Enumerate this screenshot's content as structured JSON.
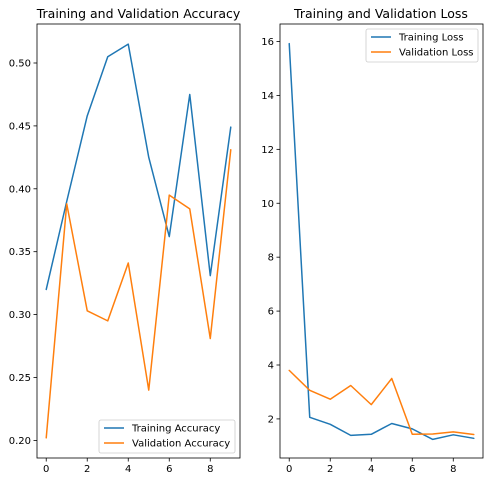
{
  "chart_data": [
    {
      "type": "line",
      "title": "Training and Validation Accuracy",
      "xlabel": "",
      "ylabel": "",
      "xlim": [
        -0.45,
        9.45
      ],
      "ylim": [
        0.186,
        0.531
      ],
      "xticks": [
        0,
        2,
        4,
        6,
        8
      ],
      "yticks": [
        0.2,
        0.25,
        0.3,
        0.35,
        0.4,
        0.45,
        0.5
      ],
      "ytick_labels": [
        "0.20",
        "0.25",
        "0.30",
        "0.35",
        "0.40",
        "0.45",
        "0.50"
      ],
      "grid": false,
      "legend_position": "lower-right",
      "x": [
        0,
        1,
        2,
        3,
        4,
        5,
        6,
        7,
        8,
        9
      ],
      "series": [
        {
          "name": "Training Accuracy",
          "color": "#1f77b4",
          "values": [
            0.32,
            0.39,
            0.458,
            0.505,
            0.515,
            0.425,
            0.362,
            0.475,
            0.331,
            0.449
          ]
        },
        {
          "name": "Validation Accuracy",
          "color": "#ff7f0e",
          "values": [
            0.202,
            0.388,
            0.303,
            0.295,
            0.341,
            0.24,
            0.395,
            0.384,
            0.281,
            0.431
          ]
        }
      ]
    },
    {
      "type": "line",
      "title": "Training and Validation Loss",
      "xlabel": "",
      "ylabel": "",
      "xlim": [
        -0.45,
        9.45
      ],
      "ylim": [
        0.55,
        16.65
      ],
      "xticks": [
        0,
        2,
        4,
        6,
        8
      ],
      "yticks": [
        2,
        4,
        6,
        8,
        10,
        12,
        14,
        16
      ],
      "ytick_labels": [
        "2",
        "4",
        "6",
        "8",
        "10",
        "12",
        "14",
        "16"
      ],
      "grid": false,
      "legend_position": "upper-right",
      "x": [
        0,
        1,
        2,
        3,
        4,
        5,
        6,
        7,
        8,
        9
      ],
      "series": [
        {
          "name": "Training Loss",
          "color": "#1f77b4",
          "values": [
            15.92,
            2.06,
            1.8,
            1.39,
            1.43,
            1.83,
            1.63,
            1.24,
            1.41,
            1.28
          ]
        },
        {
          "name": "Validation Loss",
          "color": "#ff7f0e",
          "values": [
            3.8,
            3.06,
            2.73,
            3.24,
            2.53,
            3.5,
            1.43,
            1.44,
            1.52,
            1.42
          ]
        }
      ]
    }
  ]
}
